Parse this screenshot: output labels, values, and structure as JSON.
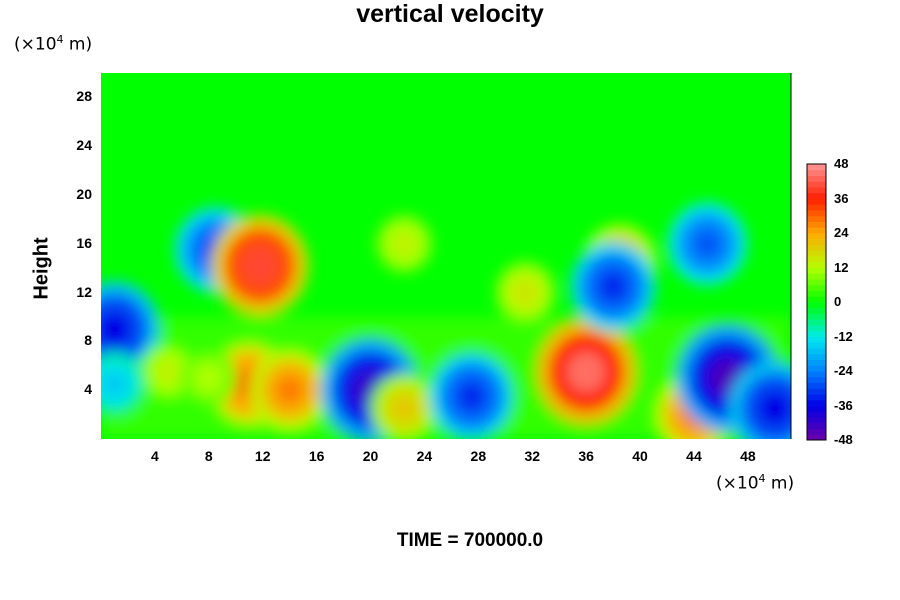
{
  "chart_data": {
    "type": "heatmap",
    "title": "vertical velocity",
    "ylabel": "Height",
    "xlabel": "",
    "x_unit": {
      "prefix": "(×10",
      "exp": "4",
      "suffix": " m)"
    },
    "y_unit": {
      "prefix": "(×10",
      "exp": "4",
      "suffix": " m)"
    },
    "xlim": [
      0,
      51.2
    ],
    "ylim": [
      0,
      30
    ],
    "x_ticks": [
      "4",
      "8",
      "12",
      "16",
      "20",
      "24",
      "28",
      "32",
      "36",
      "40",
      "44",
      "48"
    ],
    "y_ticks": [
      "4",
      "8",
      "12",
      "16",
      "20",
      "24",
      "28"
    ],
    "colorbar": {
      "min": -48,
      "max": 48,
      "ticks": [
        "48",
        "36",
        "24",
        "12",
        "0",
        "-12",
        "-24",
        "-36",
        "-48"
      ]
    },
    "features": [
      {
        "x": 1.0,
        "y": 9.0,
        "value": -36
      },
      {
        "x": 5.0,
        "y": 5.5,
        "value": 14
      },
      {
        "x": 11.0,
        "y": 4.5,
        "value": 30
      },
      {
        "x": 14.0,
        "y": 4.0,
        "value": 28
      },
      {
        "x": 8.0,
        "y": 5.0,
        "value": 12
      },
      {
        "x": 20.0,
        "y": 4.0,
        "value": -42
      },
      {
        "x": 22.5,
        "y": 2.5,
        "value": 20
      },
      {
        "x": 27.5,
        "y": 3.5,
        "value": -32
      },
      {
        "x": 36.0,
        "y": 5.5,
        "value": 44
      },
      {
        "x": 44.0,
        "y": 2.0,
        "value": 28
      },
      {
        "x": 46.5,
        "y": 5.0,
        "value": -44
      },
      {
        "x": 50.0,
        "y": 2.5,
        "value": -36
      },
      {
        "x": 8.5,
        "y": 15.5,
        "value": -30
      },
      {
        "x": 11.8,
        "y": 14.2,
        "value": 40
      },
      {
        "x": 22.5,
        "y": 16.0,
        "value": 14
      },
      {
        "x": 38.5,
        "y": 14.5,
        "value": 24
      },
      {
        "x": 38.0,
        "y": 12.5,
        "value": -32
      },
      {
        "x": 45.0,
        "y": 16.0,
        "value": -28
      },
      {
        "x": 31.5,
        "y": 12.0,
        "value": 16
      },
      {
        "x": 1.0,
        "y": 4.5,
        "value": -16
      }
    ]
  },
  "time_label": "TIME = 700000.0"
}
